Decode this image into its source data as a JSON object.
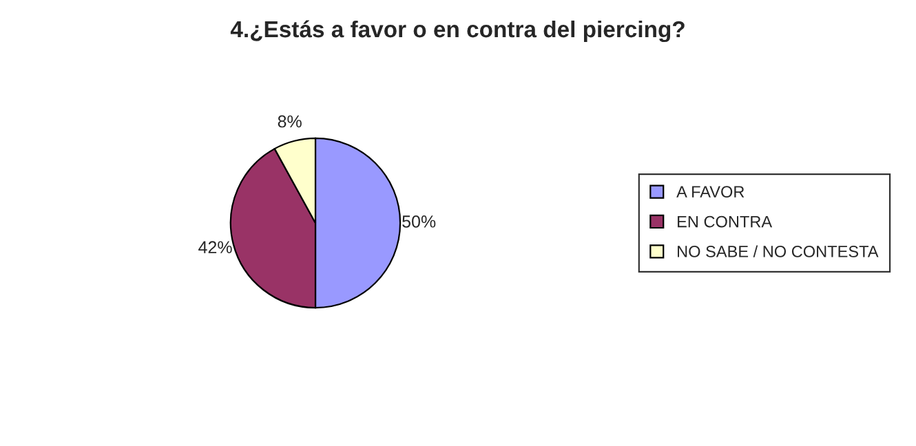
{
  "chart_data": {
    "type": "pie",
    "title": "4.¿Estás a favor o en contra del piercing?",
    "categories": [
      "A FAVOR",
      "EN CONTRA",
      "NO SABE / NO CONTESTA"
    ],
    "values": [
      50,
      42,
      8
    ],
    "colors": [
      "#9999ff",
      "#993366",
      "#ffffcc"
    ],
    "value_labels": [
      "50%",
      "42%",
      "8%"
    ],
    "legend": "right"
  }
}
